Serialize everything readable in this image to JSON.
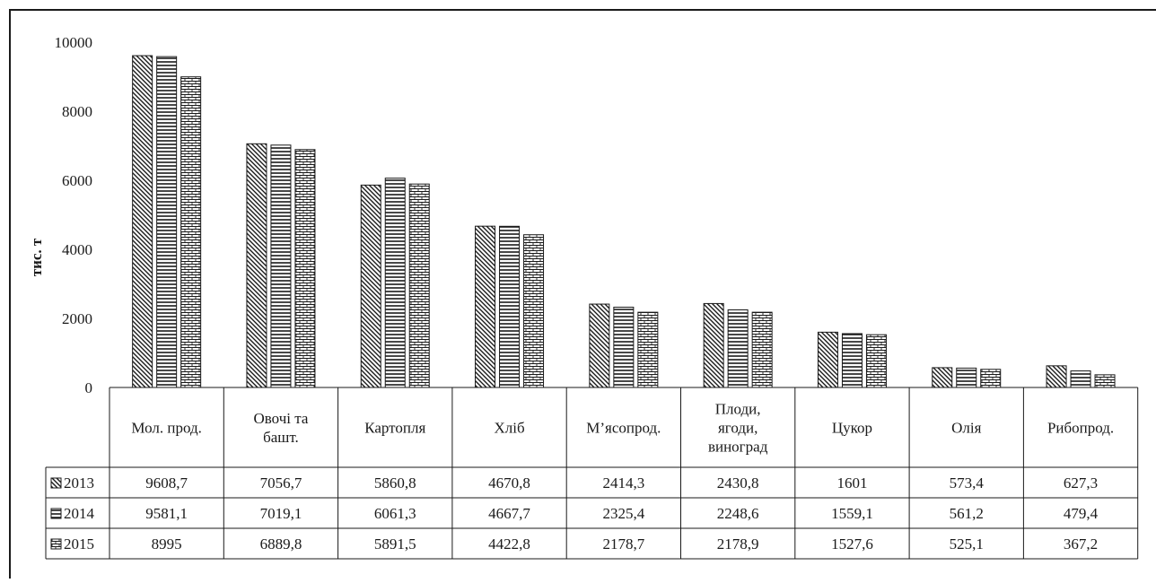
{
  "chart_data": {
    "type": "bar",
    "ylabel": "тис. т",
    "ylim": [
      0,
      10000
    ],
    "yticks": [
      0,
      2000,
      4000,
      6000,
      8000,
      10000
    ],
    "grid": false,
    "legend": "data-table-left",
    "categories": [
      [
        "Мол. прод."
      ],
      [
        "Овочі та",
        "башт."
      ],
      [
        "Картопля"
      ],
      [
        "Хліб"
      ],
      [
        "М’ясопрод."
      ],
      [
        "Плоди,",
        "ягоди,",
        "виноград"
      ],
      [
        "Цукор"
      ],
      [
        "Олія"
      ],
      [
        "Рибопрод."
      ]
    ],
    "series": [
      {
        "name": "2013",
        "pattern": "diagonal",
        "values": [
          9608.7,
          7056.7,
          5860.8,
          4670.8,
          2414.3,
          2430.8,
          1601,
          573.4,
          627.3
        ],
        "labels": [
          "9608,7",
          "7056,7",
          "5860,8",
          "4670,8",
          "2414,3",
          "2430,8",
          "1601",
          "573,4",
          "627,3"
        ]
      },
      {
        "name": "2014",
        "pattern": "horizontal",
        "values": [
          9581.1,
          7019.1,
          6061.3,
          4667.7,
          2325.4,
          2248.6,
          1559.1,
          561.2,
          479.4
        ],
        "labels": [
          "9581,1",
          "7019,1",
          "6061,3",
          "4667,7",
          "2325,4",
          "2248,6",
          "1559,1",
          "561,2",
          "479,4"
        ]
      },
      {
        "name": "2015",
        "pattern": "brick",
        "values": [
          8995,
          6889.8,
          5891.5,
          4422.8,
          2178.7,
          2178.9,
          1527.6,
          525.1,
          367.2
        ],
        "labels": [
          "8995",
          "6889,8",
          "5891,5",
          "4422,8",
          "2178,7",
          "2178,9",
          "1527,6",
          "525,1",
          "367,2"
        ]
      }
    ],
    "colors": {
      "ink": "#1a1a1a",
      "background": "#ffffff"
    }
  }
}
